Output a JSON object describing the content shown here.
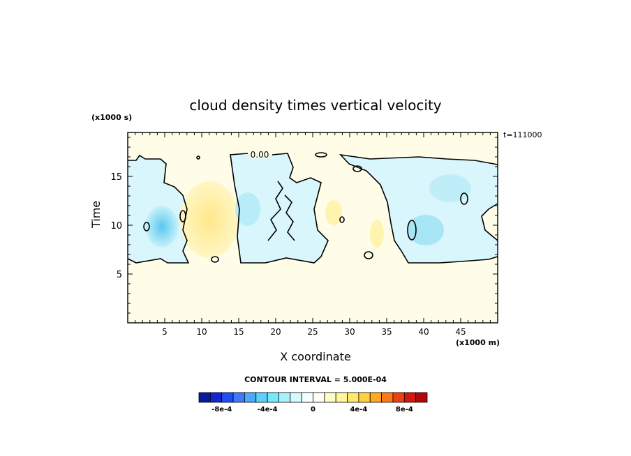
{
  "title": "cloud density times vertical velocity",
  "time_label": "t=111000",
  "contour_interval_label": "CONTOUR INTERVAL = 5.000E-04",
  "chart_data": {
    "type": "heatmap",
    "title": "cloud density times vertical velocity",
    "xlabel": "X coordinate",
    "xunits": "(x1000 m)",
    "ylabel": "Time",
    "yunits": "(x1000 s)",
    "xlim": [
      0,
      50
    ],
    "ylim": [
      0,
      19.5
    ],
    "xticks": [
      5,
      10,
      15,
      20,
      25,
      30,
      35,
      40,
      45
    ],
    "yticks": [
      5,
      10,
      15
    ],
    "contour_label": "0.00",
    "field_description_regions": [
      {
        "x": [
          0,
          8
        ],
        "y": [
          6.5,
          17.5
        ],
        "sign": "negative"
      },
      {
        "x": [
          15,
          26
        ],
        "y": [
          6.5,
          18.5
        ],
        "sign": "negative"
      },
      {
        "x": [
          33,
          50
        ],
        "y": [
          6.5,
          17
        ],
        "sign": "negative"
      },
      {
        "x": [
          8,
          15
        ],
        "y": [
          7,
          15
        ],
        "sign": "positive"
      }
    ],
    "colorbar": {
      "ticks": [
        -0.0008,
        -0.0004,
        0,
        0.0004,
        0.0008
      ],
      "tick_labels": [
        "-8e-4",
        "-4e-4",
        "0",
        "4e-4",
        "8e-4"
      ],
      "colors": [
        "#0a1aa0",
        "#1028d0",
        "#1e4ef0",
        "#3c7cf8",
        "#4ea8fa",
        "#5ad0fa",
        "#7ae6fa",
        "#a8f2fa",
        "#d4fafa",
        "#f4ffff",
        "#fffff0",
        "#fffcc8",
        "#fff59a",
        "#ffe86a",
        "#ffd040",
        "#ffa820",
        "#ff7818",
        "#f04010",
        "#d01810",
        "#b00808"
      ]
    }
  },
  "colors": {
    "background_field": "#fffde8",
    "negative": "#d8f6fb",
    "positive": "#fff3b0"
  }
}
